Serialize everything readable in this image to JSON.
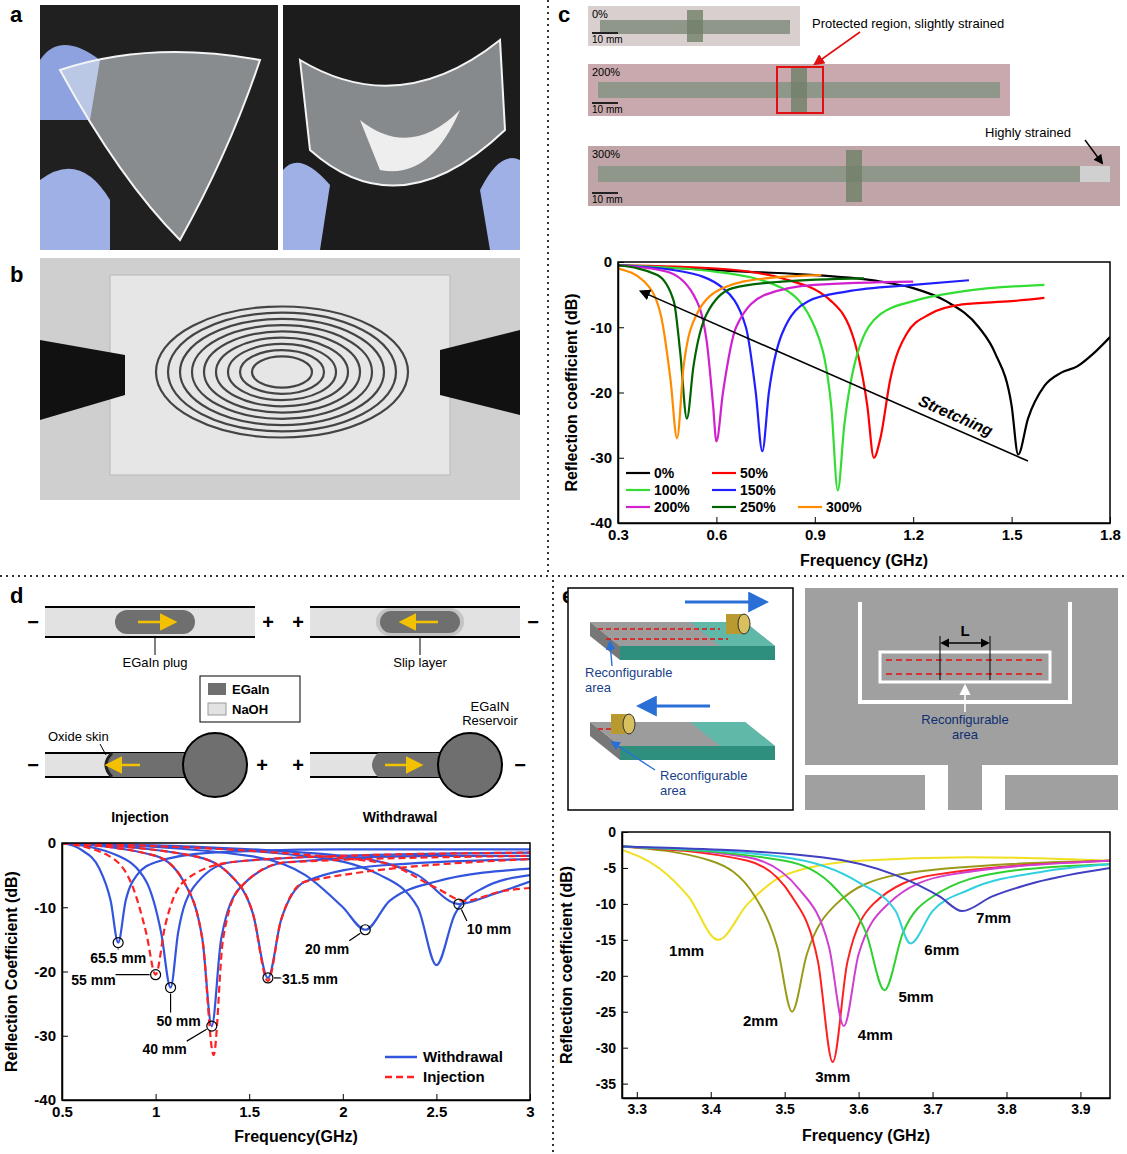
{
  "chart_data": [
    {
      "type": "line",
      "x_label": "Frequency (GHz)",
      "y_label": "Reflection coefficient (dB)",
      "xlim": [
        0.3,
        1.8
      ],
      "xticks": [
        0.3,
        0.6,
        0.9,
        1.2,
        1.5,
        1.8
      ],
      "ylim": [
        -40,
        0
      ],
      "yticks": [
        -40,
        -30,
        -20,
        -10,
        0
      ],
      "legend": "bottom-left",
      "annotations": [
        {
          "text": "Stretching",
          "from": [
            1.55,
            -30.5
          ],
          "to": [
            0.37,
            -4.5
          ]
        }
      ],
      "series": [
        {
          "name": "0%",
          "color": "#000000",
          "x": [
            0.3,
            0.5,
            0.7,
            0.9,
            1.1,
            1.2,
            1.3,
            1.4,
            1.45,
            1.5,
            1.52,
            1.55,
            1.6,
            1.65,
            1.7,
            1.75,
            1.8
          ],
          "values": [
            -0.5,
            -1,
            -1.5,
            -2,
            -3,
            -4,
            -6,
            -10,
            -14,
            -22,
            -29.5,
            -24,
            -19,
            -17,
            -16,
            -14,
            -11.5
          ]
        },
        {
          "name": "50%",
          "color": "#ff0000",
          "x": [
            0.3,
            0.6,
            0.8,
            0.95,
            1.02,
            1.06,
            1.08,
            1.1,
            1.13,
            1.18,
            1.25,
            1.35,
            1.5,
            1.6
          ],
          "values": [
            -0.5,
            -1,
            -2.5,
            -6,
            -12,
            -22,
            -30,
            -27,
            -18,
            -11,
            -8,
            -6.5,
            -6,
            -5.5
          ]
        },
        {
          "name": "100%",
          "color": "#33dd33",
          "x": [
            0.3,
            0.6,
            0.8,
            0.9,
            0.95,
            0.97,
            0.99,
            1.03,
            1.1,
            1.2,
            1.35,
            1.6
          ],
          "values": [
            -0.5,
            -1.5,
            -4,
            -10,
            -22,
            -35,
            -25,
            -14,
            -8,
            -6,
            -4.5,
            -3.5
          ]
        },
        {
          "name": "150%",
          "color": "#2020ff",
          "x": [
            0.3,
            0.5,
            0.62,
            0.69,
            0.72,
            0.74,
            0.76,
            0.8,
            0.88,
            1.0,
            1.2,
            1.37
          ],
          "values": [
            -0.5,
            -1.5,
            -4,
            -10,
            -20,
            -29,
            -20,
            -11,
            -6,
            -4.5,
            -3.5,
            -2.8
          ]
        },
        {
          "name": "200%",
          "color": "#d020d0",
          "x": [
            0.3,
            0.45,
            0.53,
            0.57,
            0.59,
            0.6,
            0.62,
            0.66,
            0.75,
            0.9,
            1.2
          ],
          "values": [
            -0.5,
            -1.5,
            -5,
            -12,
            -22,
            -27.5,
            -20,
            -10,
            -5,
            -3.5,
            -3
          ]
        },
        {
          "name": "250%",
          "color": "#006400",
          "x": [
            0.3,
            0.42,
            0.47,
            0.49,
            0.51,
            0.53,
            0.57,
            0.65,
            0.8,
            1.05
          ],
          "values": [
            -0.5,
            -2,
            -6,
            -14,
            -24,
            -16,
            -8,
            -4,
            -3,
            -2.5
          ]
        },
        {
          "name": "300%",
          "color": "#ff8c00",
          "x": [
            0.3,
            0.38,
            0.43,
            0.46,
            0.48,
            0.5,
            0.54,
            0.62,
            0.75,
            0.92
          ],
          "values": [
            -1,
            -3,
            -8,
            -18,
            -27,
            -16,
            -8,
            -4,
            -2.5,
            -2
          ]
        }
      ]
    },
    {
      "type": "line",
      "x_label": "Frequency(GHz)",
      "y_label": "Reflection Coefficient (dB)",
      "xlim": [
        0.5,
        3
      ],
      "xticks": [
        0.5,
        1,
        1.5,
        2,
        2.5,
        3
      ],
      "ylim": [
        -40,
        0
      ],
      "yticks": [
        -40,
        -30,
        -20,
        -10,
        0
      ],
      "legend": "bottom-right",
      "annotations": [
        {
          "text": "65.5 mm",
          "x": 0.8,
          "y": -15.5
        },
        {
          "text": "55 mm",
          "x": 1.0,
          "y": -20.5
        },
        {
          "text": "50 mm",
          "x": 1.08,
          "y": -22.5
        },
        {
          "text": "40 mm",
          "x": 1.3,
          "y": -28.5
        },
        {
          "text": "31.5 mm",
          "x": 1.6,
          "y": -21
        },
        {
          "text": "20 mm",
          "x": 2.12,
          "y": -13.5
        },
        {
          "text": "10 mm",
          "x": 2.62,
          "y": -9.5
        }
      ],
      "series": [
        {
          "name": "Withdrawal",
          "color": "#3355dd",
          "line_style": "solid",
          "curves": [
            {
              "x": [
                0.5,
                0.6,
                0.7,
                0.76,
                0.8,
                0.84,
                0.9,
                1.0,
                1.3,
                2.0,
                3.0
              ],
              "values": [
                0,
                -1,
                -4,
                -9,
                -15.5,
                -9,
                -5,
                -3,
                -1.5,
                -1,
                -1
              ]
            },
            {
              "x": [
                0.5,
                0.8,
                0.95,
                1.03,
                1.08,
                1.12,
                1.2,
                1.4,
                2.0,
                3.0
              ],
              "values": [
                0,
                -2,
                -6,
                -14,
                -22.5,
                -14,
                -7,
                -3,
                -2,
                -1.5
              ]
            },
            {
              "x": [
                0.5,
                1.0,
                1.15,
                1.25,
                1.3,
                1.35,
                1.45,
                1.7,
                2.5,
                3.0
              ],
              "values": [
                0,
                -2,
                -6,
                -15,
                -28.5,
                -15,
                -7,
                -3,
                -2,
                -2
              ]
            },
            {
              "x": [
                0.5,
                1.2,
                1.4,
                1.52,
                1.6,
                1.67,
                1.8,
                2.2,
                3.0
              ],
              "values": [
                0,
                -2,
                -5,
                -11,
                -21,
                -12,
                -6,
                -3.5,
                -2.5
              ]
            },
            {
              "x": [
                0.5,
                1.5,
                1.8,
                2.0,
                2.12,
                2.25,
                2.5,
                3.0
              ],
              "values": [
                0,
                -2,
                -5,
                -10,
                -13.5,
                -9,
                -6,
                -4
              ]
            },
            {
              "x": [
                0.5,
                1.8,
                2.2,
                2.4,
                2.5,
                2.6,
                2.75,
                3.0
              ],
              "values": [
                0,
                -2,
                -5,
                -10,
                -19,
                -11,
                -7,
                -5
              ]
            },
            {
              "x": [
                0.5,
                2.0,
                2.4,
                2.62,
                2.8,
                3.0
              ],
              "values": [
                0,
                -2,
                -5,
                -9.5,
                -8,
                -6
              ]
            }
          ]
        },
        {
          "name": "Injection",
          "color": "#ff2222",
          "line_style": "dashed",
          "curves": [
            {
              "x": [
                0.5,
                0.75,
                0.88,
                0.95,
                1.0,
                1.05,
                1.15,
                1.4,
                2.0,
                3.0
              ],
              "values": [
                0,
                -2,
                -7,
                -14,
                -20.5,
                -13,
                -6,
                -3,
                -2,
                -1.5
              ]
            },
            {
              "x": [
                0.5,
                1.0,
                1.15,
                1.25,
                1.31,
                1.36,
                1.45,
                1.7,
                3.0
              ],
              "values": [
                0,
                -2,
                -6,
                -15,
                -33,
                -15,
                -7,
                -3,
                -2
              ]
            },
            {
              "x": [
                0.5,
                1.2,
                1.4,
                1.52,
                1.6,
                1.67,
                1.8,
                3.0
              ],
              "values": [
                0,
                -2,
                -5,
                -11,
                -21.5,
                -12,
                -6,
                -2.5
              ]
            },
            {
              "x": [
                0.5,
                2.2,
                2.5,
                2.65,
                2.85,
                3.0
              ],
              "values": [
                0,
                -3,
                -7,
                -9,
                -7.5,
                -7
              ]
            }
          ]
        }
      ]
    },
    {
      "type": "line",
      "x_label": "Frequency (GHz)",
      "y_label": "Reflection coefficient (dB)",
      "xlim": [
        3.28,
        3.94
      ],
      "xticks": [
        3.3,
        3.4,
        3.5,
        3.6,
        3.7,
        3.8,
        3.9
      ],
      "ylim": [
        -37,
        0
      ],
      "yticks": [
        -35,
        -30,
        -25,
        -20,
        -15,
        -10,
        -5,
        0
      ],
      "series": [
        {
          "name": "1mm",
          "color": "#f0e020",
          "x": [
            3.28,
            3.33,
            3.37,
            3.41,
            3.45,
            3.5,
            3.6,
            3.75,
            3.94
          ],
          "values": [
            -2.5,
            -5,
            -9,
            -15,
            -10,
            -6,
            -4,
            -3.5,
            -4
          ]
        },
        {
          "name": "2mm",
          "color": "#9a9a1a",
          "x": [
            3.28,
            3.4,
            3.46,
            3.49,
            3.51,
            3.53,
            3.57,
            3.65,
            3.8,
            3.94
          ],
          "values": [
            -2,
            -4,
            -9,
            -16,
            -25,
            -17,
            -10,
            -6,
            -4.5,
            -4
          ]
        },
        {
          "name": "3mm",
          "color": "#ff2020",
          "x": [
            3.28,
            3.45,
            3.51,
            3.545,
            3.565,
            3.585,
            3.62,
            3.7,
            3.94
          ],
          "values": [
            -2,
            -4,
            -9,
            -18,
            -32,
            -18,
            -10,
            -6,
            -4
          ]
        },
        {
          "name": "4mm",
          "color": "#d040d0",
          "x": [
            3.28,
            3.45,
            3.52,
            3.56,
            3.58,
            3.6,
            3.64,
            3.72,
            3.94
          ],
          "values": [
            -2,
            -3.5,
            -8,
            -16,
            -27,
            -17,
            -10,
            -6,
            -4
          ]
        },
        {
          "name": "5mm",
          "color": "#30d030",
          "x": [
            3.28,
            3.5,
            3.57,
            3.61,
            3.635,
            3.66,
            3.7,
            3.8,
            3.94
          ],
          "values": [
            -2,
            -4,
            -8,
            -14,
            -22,
            -14,
            -9,
            -5.5,
            -4.5
          ]
        },
        {
          "name": "6mm",
          "color": "#30d0e0",
          "x": [
            3.28,
            3.5,
            3.6,
            3.65,
            3.67,
            3.7,
            3.75,
            3.85,
            3.94
          ],
          "values": [
            -2,
            -3.5,
            -7,
            -11,
            -15.5,
            -11,
            -8,
            -5.5,
            -4.5
          ]
        },
        {
          "name": "7mm",
          "color": "#4040c0",
          "x": [
            3.28,
            3.55,
            3.65,
            3.71,
            3.74,
            3.78,
            3.84,
            3.94
          ],
          "values": [
            -2,
            -3.5,
            -6,
            -9,
            -11,
            -9,
            -7,
            -5
          ]
        }
      ]
    }
  ],
  "figure": {
    "panel_letters": [
      "a",
      "b",
      "c",
      "d",
      "e"
    ],
    "c_photos": [
      {
        "strain": "0%",
        "scale": "10 mm"
      },
      {
        "strain": "200%",
        "scale": "10 mm"
      },
      {
        "strain": "300%",
        "scale": "10 mm"
      }
    ],
    "c_notes": {
      "protected": "Protected region, slightly strained",
      "strained": "Highly strained"
    },
    "d_schematic": {
      "tubes": [
        {
          "left_sign": "−",
          "right_sign": "+",
          "label": "EGaIn plug"
        },
        {
          "left_sign": "+",
          "right_sign": "−",
          "label": "Slip layer"
        },
        {
          "left_sign": "−",
          "right_sign": "+",
          "label": "Injection",
          "note": "Oxide skin"
        },
        {
          "left_sign": "+",
          "right_sign": "−",
          "label": "Withdrawal",
          "note": "EGaIN Reservoir"
        }
      ],
      "key": [
        "EGaIn",
        "NaOH"
      ]
    },
    "e_schematic": {
      "area_labels": [
        "Reconfigurable area",
        "Reconfigurable area",
        "Reconfigurable area"
      ],
      "dimension": "L"
    }
  }
}
